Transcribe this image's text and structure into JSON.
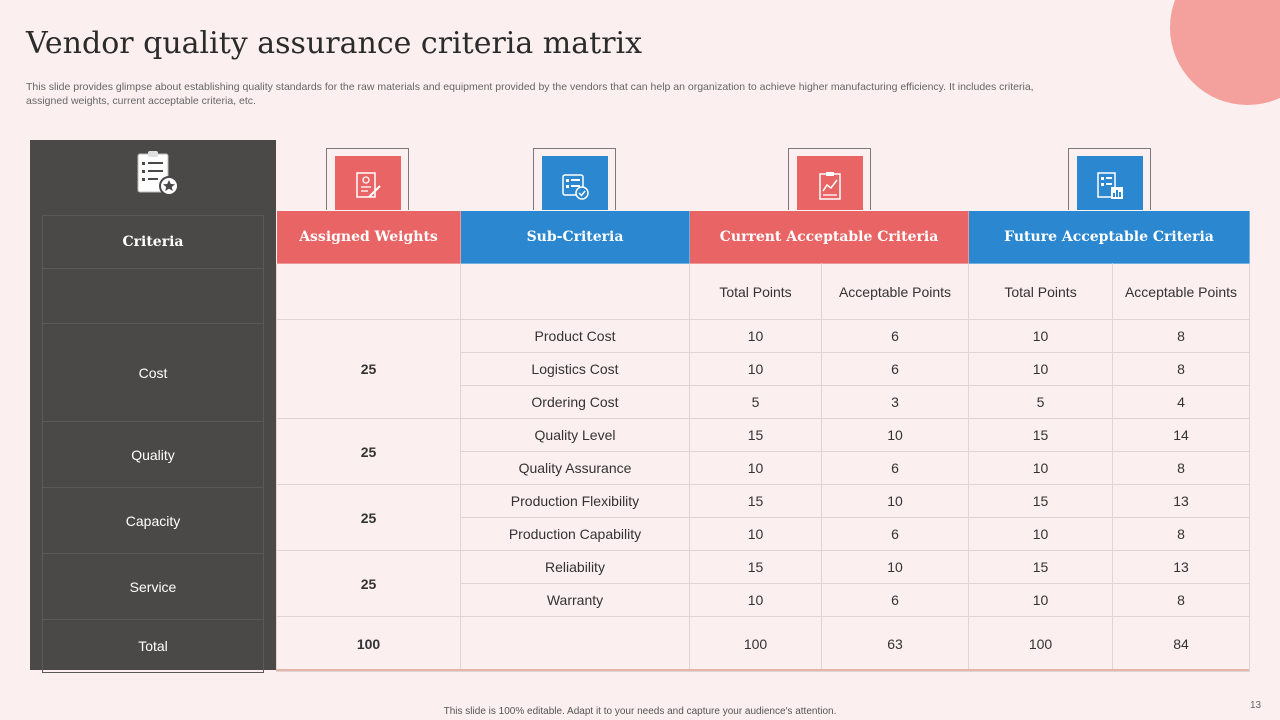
{
  "title": "Vendor quality assurance criteria matrix",
  "subtitle": "This slide provides glimpse about establishing quality standards for the raw materials and equipment provided by the vendors that can help an organization to achieve higher manufacturing efficiency. It includes criteria, assigned weights, current acceptable criteria, etc.",
  "criteria_header": "Criteria",
  "headers": {
    "assigned_weights": "Assigned Weights",
    "sub_criteria": "Sub-Criteria",
    "current": "Current Acceptable Criteria",
    "future": "Future Acceptable Criteria"
  },
  "subheaders": {
    "current_total": "Total Points",
    "current_acceptable": "Acceptable Points",
    "future_total": "Total Points",
    "future_acceptable": "Acceptable Points"
  },
  "groups": [
    {
      "criteria": "Cost",
      "weight": "25",
      "rows": [
        {
          "sub": "Product Cost",
          "ct": "10",
          "ca": "6",
          "ft": "10",
          "fa": "8"
        },
        {
          "sub": "Logistics Cost",
          "ct": "10",
          "ca": "6",
          "ft": "10",
          "fa": "8"
        },
        {
          "sub": "Ordering Cost",
          "ct": "5",
          "ca": "3",
          "ft": "5",
          "fa": "4"
        }
      ]
    },
    {
      "criteria": "Quality",
      "weight": "25",
      "rows": [
        {
          "sub": "Quality Level",
          "ct": "15",
          "ca": "10",
          "ft": "15",
          "fa": "14"
        },
        {
          "sub": "Quality Assurance",
          "ct": "10",
          "ca": "6",
          "ft": "10",
          "fa": "8"
        }
      ]
    },
    {
      "criteria": "Capacity",
      "weight": "25",
      "rows": [
        {
          "sub": "Production Flexibility",
          "ct": "15",
          "ca": "10",
          "ft": "15",
          "fa": "13"
        },
        {
          "sub": "Production Capability",
          "ct": "10",
          "ca": "6",
          "ft": "10",
          "fa": "8"
        }
      ]
    },
    {
      "criteria": "Service",
      "weight": "25",
      "rows": [
        {
          "sub": "Reliability",
          "ct": "15",
          "ca": "10",
          "ft": "15",
          "fa": "13"
        },
        {
          "sub": "Warranty",
          "ct": "10",
          "ca": "6",
          "ft": "10",
          "fa": "8"
        }
      ]
    }
  ],
  "total": {
    "label": "Total",
    "weight": "100",
    "ct": "100",
    "ca": "63",
    "ft": "100",
    "fa": "84"
  },
  "icons": [
    "document-edit-icon",
    "checklist-icon",
    "report-chart-icon",
    "analytics-document-icon",
    "rated-checklist-icon"
  ],
  "colors": {
    "red": "#e96565",
    "blue": "#2b87cf",
    "dark": "#4b4848",
    "accent_circle": "#f4a09c"
  },
  "footer": "This slide is 100% editable. Adapt it to your needs and capture your audience's attention.",
  "page_number": "13"
}
